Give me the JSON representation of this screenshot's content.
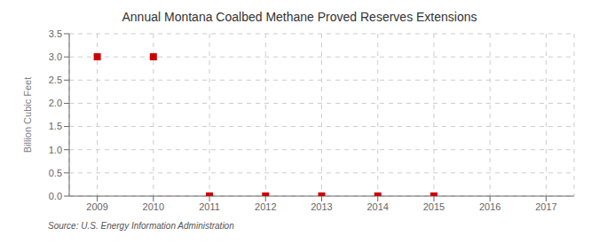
{
  "chart_data": {
    "type": "scatter",
    "title": "Annual Montana Coalbed Methane Proved Reserves Extensions",
    "ylabel": "Billion Cubic Feet",
    "annotations": [
      "Source: U.S. Energy Information Administration"
    ],
    "x": [
      2009,
      2010,
      2011,
      2012,
      2013,
      2014,
      2015,
      2016,
      2017
    ],
    "values": [
      3.003,
      3.003,
      0.003,
      0.003,
      0.003,
      0.003,
      0.003,
      null,
      null
    ],
    "xlim": [
      2008.5,
      2017.5
    ],
    "ylim": [
      0.0,
      3.5
    ],
    "xticks": [
      2009,
      2010,
      2011,
      2012,
      2013,
      2014,
      2015,
      2016,
      2017
    ],
    "yticks": [
      {
        "value": 0.0,
        "label": "0.0"
      },
      0.5,
      {
        "value": 1.0,
        "label": "1.0"
      },
      1.5,
      {
        "value": 2.0,
        "label": "2.0"
      },
      2.5,
      {
        "value": 3.0,
        "label": "3.0"
      },
      3.5
    ],
    "color": "#cc0000",
    "marker": "square",
    "grid": true
  }
}
